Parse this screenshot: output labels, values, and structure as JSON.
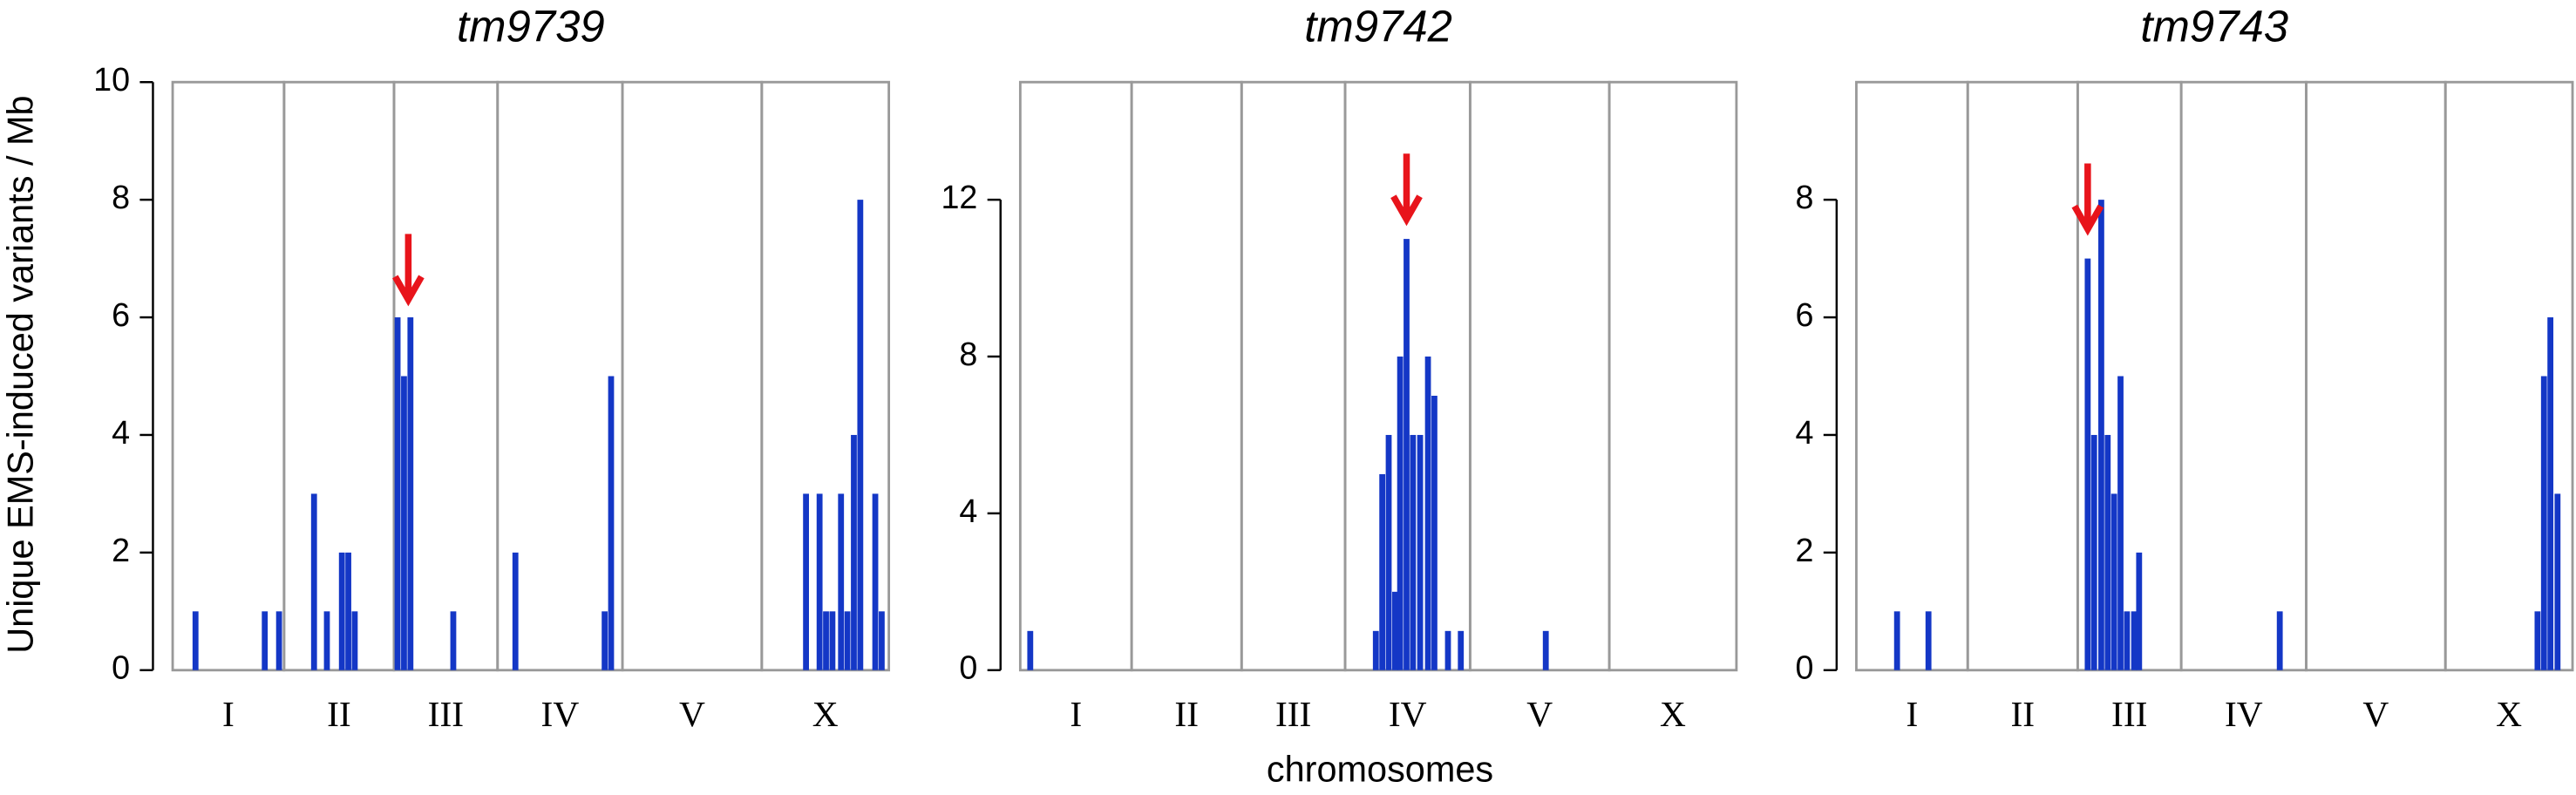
{
  "axis_labels": {
    "y": "Unique EMS-induced variants / Mb",
    "x": "chromosomes"
  },
  "chart_data": [
    {
      "type": "bar",
      "title": "tm9739",
      "color": "#1437c6",
      "categories": [
        "I",
        "II",
        "III",
        "IV",
        "V",
        "X"
      ],
      "lengths": [
        15.6,
        15.4,
        14.5,
        17.5,
        19.5,
        17.8
      ],
      "xlim": [
        0,
        100.3
      ],
      "ylim": [
        0,
        10
      ],
      "yticks": [
        0,
        2,
        4,
        6,
        8,
        10
      ],
      "x": [
        3.2,
        12.9,
        14.9,
        19.8,
        21.6,
        23.7,
        24.6,
        25.5,
        31.5,
        32.4,
        33.3,
        39.3,
        48.0,
        60.5,
        61.4,
        88.7,
        90.6,
        91.5,
        92.4,
        93.6,
        94.5,
        95.4,
        96.3,
        98.4,
        99.3
      ],
      "values": [
        1,
        1,
        1,
        3,
        1,
        2,
        2,
        1,
        6,
        5,
        6,
        1,
        2,
        1,
        5,
        3,
        3,
        1,
        1,
        3,
        1,
        4,
        8,
        3,
        1
      ],
      "arrow": {
        "x": 33.0,
        "y": 6.3,
        "color": "#e8141b"
      }
    },
    {
      "type": "bar",
      "title": "tm9742",
      "color": "#1437c6",
      "categories": [
        "I",
        "II",
        "III",
        "IV",
        "V",
        "X"
      ],
      "lengths": [
        15.6,
        15.4,
        14.5,
        17.5,
        19.5,
        17.8
      ],
      "xlim": [
        0,
        100.3
      ],
      "ylim": [
        0,
        15
      ],
      "yticks": [
        0,
        4,
        8,
        12
      ],
      "x": [
        1.4,
        49.8,
        50.7,
        51.6,
        52.5,
        53.2,
        54.1,
        55.0,
        56.0,
        57.1,
        58.0,
        59.9,
        61.7,
        73.6
      ],
      "values": [
        1,
        1,
        5,
        6,
        2,
        8,
        11,
        6,
        6,
        8,
        7,
        1,
        1,
        1
      ],
      "arrow": {
        "x": 54.1,
        "y": 11.5,
        "color": "#e8141b"
      }
    },
    {
      "type": "bar",
      "title": "tm9743",
      "color": "#1437c6",
      "categories": [
        "I",
        "II",
        "III",
        "IV",
        "V",
        "X"
      ],
      "lengths": [
        15.6,
        15.4,
        14.5,
        17.5,
        19.5,
        17.8
      ],
      "xlim": [
        0,
        100.3
      ],
      "ylim": [
        0,
        10
      ],
      "yticks": [
        0,
        2,
        4,
        6,
        8
      ],
      "x": [
        5.7,
        10.1,
        32.4,
        33.3,
        34.3,
        35.2,
        36.1,
        37.0,
        37.9,
        38.9,
        39.6,
        59.3,
        95.4,
        96.3,
        97.2,
        98.2
      ],
      "values": [
        1,
        1,
        7,
        4,
        8,
        4,
        3,
        5,
        1,
        1,
        2,
        1,
        1,
        5,
        6,
        3
      ],
      "arrow": {
        "x": 32.4,
        "y": 7.5,
        "color": "#e8141b"
      }
    }
  ]
}
